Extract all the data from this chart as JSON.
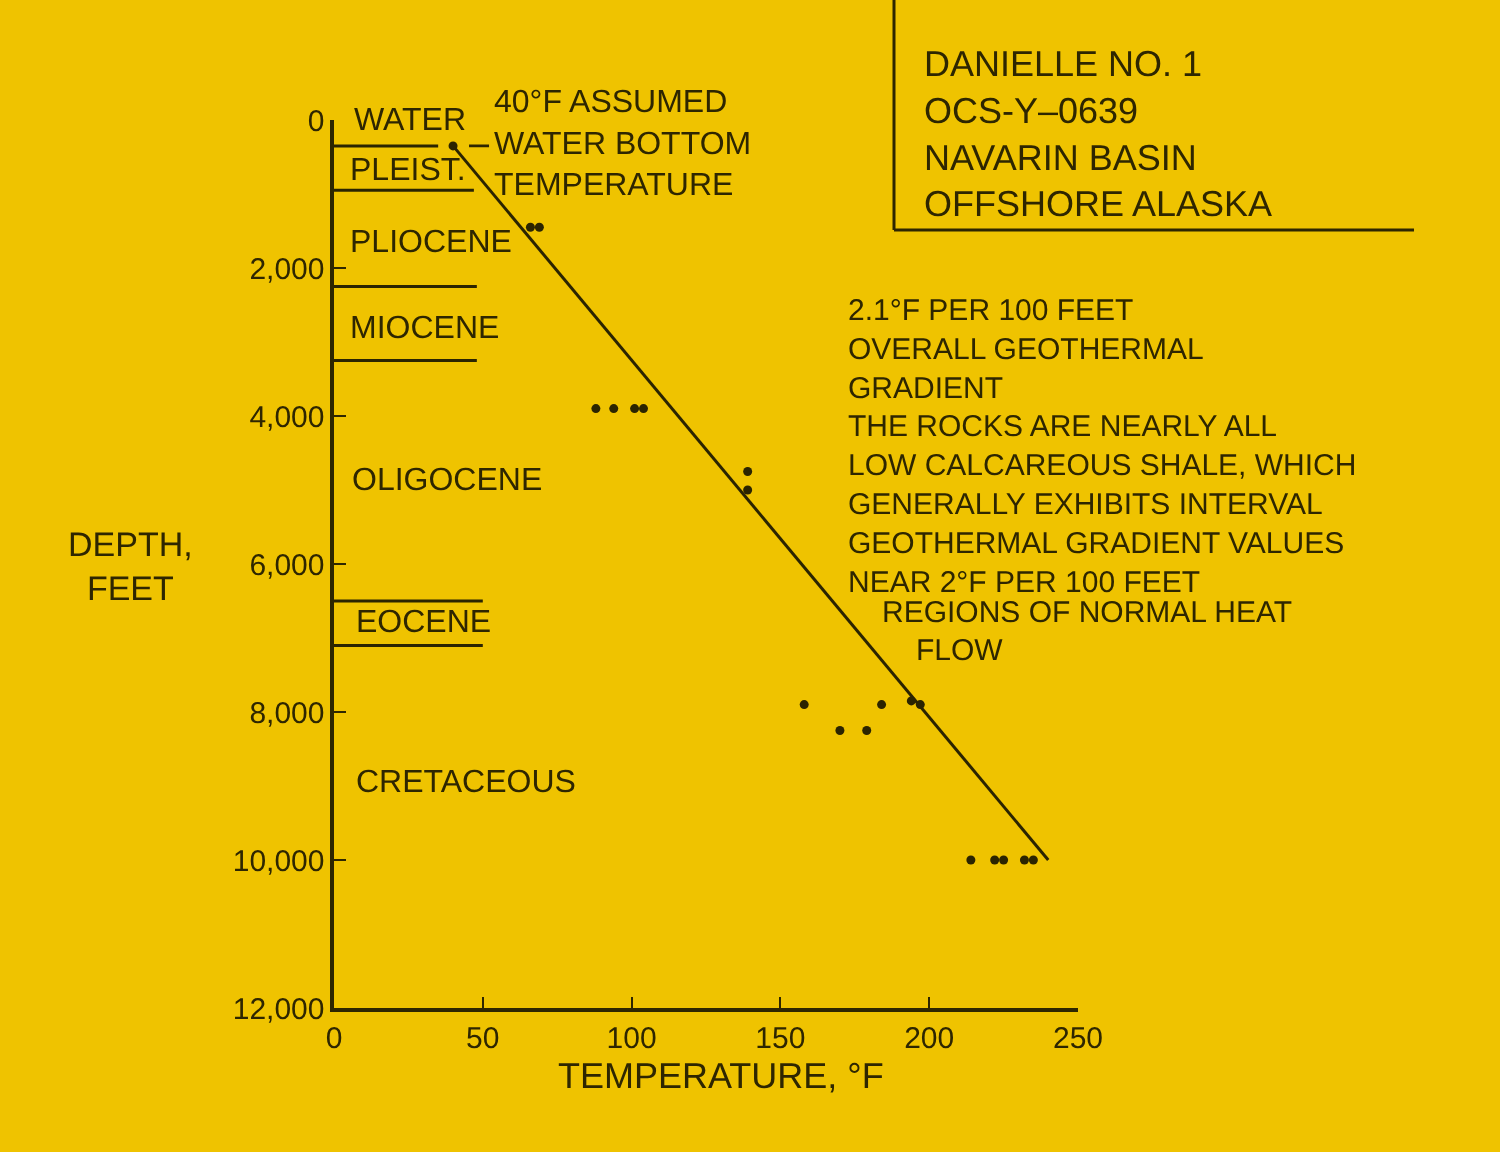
{
  "chart_data": {
    "type": "scatter",
    "title": "DANIELLE NO. 1\nOCS-Y–0639\nNAVARIN BASIN\nOFFSHORE ALASKA",
    "xlabel": "TEMPERATURE, °F",
    "ylabel": "DEPTH,\nFEET",
    "xlim": [
      0,
      250
    ],
    "xticks": [
      0,
      50,
      100,
      150,
      200,
      250
    ],
    "ylim": [
      12000,
      0
    ],
    "yticks": [
      0,
      {
        "value": 2000,
        "label": "2,000"
      },
      {
        "value": 4000,
        "label": "4,000"
      },
      {
        "value": 6000,
        "label": "6,000"
      },
      {
        "value": 8000,
        "label": "8,000"
      },
      {
        "value": 10000,
        "label": "10,000"
      },
      {
        "value": 12000,
        "label": "12,000"
      }
    ],
    "line_style": "solid",
    "series": [
      {
        "type": "line",
        "color": "#2b2400",
        "x": [
          0,
          35
        ],
        "values": [
          350,
          350
        ]
      },
      {
        "type": "line",
        "color": "#2b2400",
        "x": [
          0,
          47
        ],
        "values": [
          950,
          950
        ]
      },
      {
        "type": "line",
        "color": "#2b2400",
        "x": [
          0,
          48
        ],
        "values": [
          2250,
          2250
        ]
      },
      {
        "type": "line",
        "color": "#2b2400",
        "x": [
          0,
          48
        ],
        "values": [
          3250,
          3250
        ]
      },
      {
        "type": "line",
        "color": "#2b2400",
        "x": [
          0,
          50
        ],
        "values": [
          6500,
          6500
        ]
      },
      {
        "type": "line",
        "color": "#2b2400",
        "x": [
          0,
          50
        ],
        "values": [
          7100,
          7100
        ]
      },
      {
        "type": "line",
        "color": "#2b2400",
        "x": [
          40,
          240
        ],
        "values": [
          350,
          10000
        ]
      },
      {
        "color": "#2b2400",
        "marker": "circle",
        "x": [
          40,
          66,
          69,
          88,
          94,
          101,
          104,
          139,
          139,
          158,
          170,
          179,
          184,
          194,
          197,
          214,
          222,
          225,
          232,
          235
        ],
        "values": [
          350,
          1450,
          1450,
          3900,
          3900,
          3900,
          3900,
          4750,
          5000,
          7900,
          8250,
          8250,
          7900,
          7850,
          7900,
          10000,
          10000,
          10000,
          10000,
          10000
        ]
      }
    ],
    "annotations": [
      {
        "text": "40°F ASSUMED\nWATER BOTTOM\nTEMPERATURE",
        "x": 40,
        "y": 350
      },
      "2.1°F PER 100 FEET\nOVERALL GEOTHERMAL\nGRADIENT",
      "THE ROCKS ARE NEARLY ALL\nLOW CALCAREOUS SHALE, WHICH\nGENERALLY EXHIBITS INTERVAL\nGEOTHERMAL GRADIENT VALUES\nNEAR 2°F PER 100 FEET",
      "REGIONS OF NORMAL HEAT",
      "FLOW",
      "WATER",
      "PLEIST.",
      "PLIOCENE",
      "MIOCENE",
      "OLIGOCENE",
      "EOCENE",
      "CRETACEOUS"
    ]
  }
}
